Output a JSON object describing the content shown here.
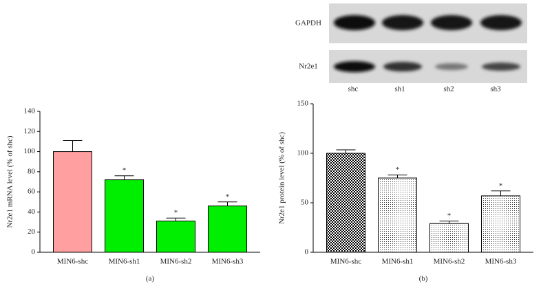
{
  "blot": {
    "rows": [
      "GAPDH",
      "Nr2e1"
    ],
    "lanes": [
      "shc",
      "sh1",
      "sh2",
      "sh3"
    ]
  },
  "chart_data": [
    {
      "type": "bar",
      "caption": "(a)",
      "y_label": "Nr2e1 mRNA level (% of shc)",
      "categories": [
        "MIN6-shc",
        "MIN6-sh1",
        "MIN6-sh2",
        "MIN6-sh3"
      ],
      "values": [
        100,
        72,
        31,
        46
      ],
      "errors": [
        11,
        4,
        3,
        4
      ],
      "annotations": [
        null,
        "*",
        "*",
        "*"
      ],
      "colors": [
        "#ff9f9f",
        "#00ee00",
        "#00ee00",
        "#00ee00"
      ],
      "ylim": [
        0,
        140
      ],
      "yticks": [
        0,
        20,
        40,
        60,
        80,
        100,
        120,
        140
      ]
    },
    {
      "type": "bar",
      "caption": "(b)",
      "y_label": "Nr2e1 protein level (% of shc)",
      "categories": [
        "MIN6-shc",
        "MIN6-sh1",
        "MIN6-sh2",
        "MIN6-sh3"
      ],
      "values": [
        100,
        75,
        29,
        57
      ],
      "errors": [
        3.5,
        3,
        2.5,
        5
      ],
      "annotations": [
        null,
        "*",
        "*",
        "*"
      ],
      "patterns": [
        "checker",
        "dots",
        "dots",
        "dots"
      ],
      "ylim": [
        0,
        150
      ],
      "yticks": [
        0,
        50,
        100,
        150
      ]
    }
  ]
}
